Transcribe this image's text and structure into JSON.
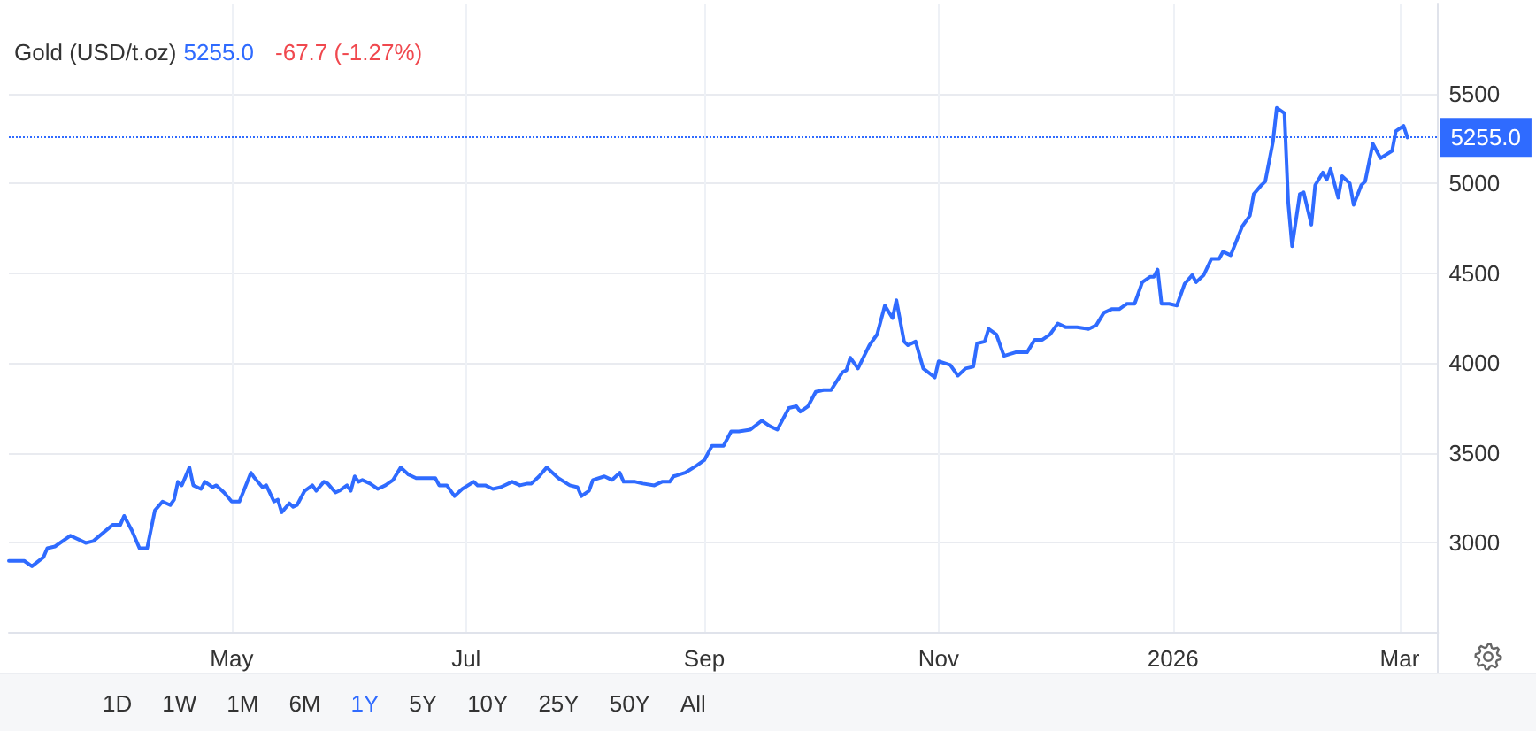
{
  "chart_data": {
    "type": "line",
    "title": "Gold (USD/t.oz)",
    "annotations": [
      "5255.0",
      "-67.7 (-1.27%)",
      "1D",
      "1W",
      "1M",
      "6M",
      "1Y",
      "5Y",
      "10Y",
      "25Y",
      "50Y",
      "All"
    ],
    "x": [
      "2025-03-04",
      "2025-03-08",
      "2025-03-10",
      "2025-03-13",
      "2025-03-14",
      "2025-03-16",
      "2025-03-20",
      "2025-03-24",
      "2025-03-26",
      "2025-03-31",
      "2025-04-02",
      "2025-04-03",
      "2025-04-05",
      "2025-04-07",
      "2025-04-09",
      "2025-04-11",
      "2025-04-13",
      "2025-04-15",
      "2025-04-16",
      "2025-04-17",
      "2025-04-18",
      "2025-04-20",
      "2025-04-21",
      "2025-04-23",
      "2025-04-24",
      "2025-04-26",
      "2025-04-27",
      "2025-04-29",
      "2025-05-01",
      "2025-05-03",
      "2025-05-06",
      "2025-05-07",
      "2025-05-09",
      "2025-05-10",
      "2025-05-12",
      "2025-05-13",
      "2025-05-14",
      "2025-05-16",
      "2025-05-17",
      "2025-05-18",
      "2025-05-20",
      "2025-05-22",
      "2025-05-23",
      "2025-05-25",
      "2025-05-26",
      "2025-05-28",
      "2025-05-29",
      "2025-05-31",
      "2025-06-01",
      "2025-06-02",
      "2025-06-03",
      "2025-06-04",
      "2025-06-06",
      "2025-06-08",
      "2025-06-10",
      "2025-06-12",
      "2025-06-14",
      "2025-06-16",
      "2025-06-18",
      "2025-06-23",
      "2025-06-24",
      "2025-06-26",
      "2025-06-28",
      "2025-06-30",
      "2025-07-03",
      "2025-07-04",
      "2025-07-06",
      "2025-07-08",
      "2025-07-10",
      "2025-07-13",
      "2025-07-15",
      "2025-07-17",
      "2025-07-18",
      "2025-07-20",
      "2025-07-22",
      "2025-07-25",
      "2025-07-28",
      "2025-07-30",
      "2025-07-31",
      "2025-08-02",
      "2025-08-03",
      "2025-08-06",
      "2025-08-08",
      "2025-08-10",
      "2025-08-11",
      "2025-08-14",
      "2025-08-16",
      "2025-08-19",
      "2025-08-21",
      "2025-08-23",
      "2025-08-24",
      "2025-08-27",
      "2025-08-30",
      "2025-09-01",
      "2025-09-03",
      "2025-09-06",
      "2025-09-08",
      "2025-09-10",
      "2025-09-13",
      "2025-09-16",
      "2025-09-18",
      "2025-09-20",
      "2025-09-23",
      "2025-09-25",
      "2025-09-26",
      "2025-09-28",
      "2025-09-30",
      "2025-10-02",
      "2025-10-04",
      "2025-10-07",
      "2025-10-08",
      "2025-10-09",
      "2025-10-11",
      "2025-10-14",
      "2025-10-16",
      "2025-10-18",
      "2025-10-20",
      "2025-10-21",
      "2025-10-23",
      "2025-10-24",
      "2025-10-26",
      "2025-10-28",
      "2025-10-31",
      "2025-11-01",
      "2025-11-04",
      "2025-11-06",
      "2025-11-08",
      "2025-11-10",
      "2025-11-11",
      "2025-11-13",
      "2025-11-14",
      "2025-11-16",
      "2025-11-18",
      "2025-11-21",
      "2025-11-24",
      "2025-11-26",
      "2025-11-28",
      "2025-11-30",
      "2025-12-02",
      "2025-12-04",
      "2025-12-07",
      "2025-12-10",
      "2025-12-12",
      "2025-12-14",
      "2025-12-16",
      "2025-12-18",
      "2025-12-20",
      "2025-12-22",
      "2025-12-24",
      "2025-12-26",
      "2025-12-27",
      "2025-12-28",
      "2025-12-29",
      "2025-12-31",
      "2026-01-02",
      "2026-01-04",
      "2026-01-06",
      "2026-01-07",
      "2026-01-09",
      "2026-01-11",
      "2026-01-13",
      "2026-01-14",
      "2026-01-16",
      "2026-01-19",
      "2026-01-21",
      "2026-01-22",
      "2026-01-24",
      "2026-01-25",
      "2026-01-27",
      "2026-01-28",
      "2026-01-30",
      "2026-01-31",
      "2026-02-01",
      "2026-02-03",
      "2026-02-04",
      "2026-02-06",
      "2026-02-07",
      "2026-02-09",
      "2026-02-10",
      "2026-02-11",
      "2026-02-13",
      "2026-02-14",
      "2026-02-16",
      "2026-02-17",
      "2026-02-19",
      "2026-02-20",
      "2026-02-22",
      "2026-02-24",
      "2026-02-27",
      "2026-02-28",
      "2026-03-02",
      "2026-03-03"
    ],
    "series": [
      {
        "color": "#2f6bff",
        "values": [
          2900,
          2900,
          2870,
          2920,
          2970,
          2980,
          3040,
          3000,
          3010,
          3100,
          3100,
          3150,
          3070,
          2970,
          2970,
          3180,
          3230,
          3210,
          3240,
          3340,
          3320,
          3420,
          3320,
          3300,
          3340,
          3310,
          3320,
          3280,
          3230,
          3230,
          3390,
          3360,
          3310,
          3320,
          3230,
          3240,
          3170,
          3220,
          3200,
          3210,
          3290,
          3320,
          3290,
          3340,
          3330,
          3280,
          3290,
          3320,
          3290,
          3370,
          3340,
          3350,
          3330,
          3300,
          3320,
          3350,
          3420,
          3380,
          3360,
          3360,
          3320,
          3320,
          3260,
          3300,
          3340,
          3320,
          3320,
          3300,
          3310,
          3340,
          3320,
          3330,
          3330,
          3370,
          3420,
          3360,
          3320,
          3310,
          3260,
          3290,
          3350,
          3370,
          3350,
          3390,
          3340,
          3340,
          3330,
          3320,
          3340,
          3340,
          3370,
          3390,
          3430,
          3460,
          3540,
          3540,
          3620,
          3620,
          3630,
          3680,
          3650,
          3630,
          3750,
          3760,
          3730,
          3760,
          3840,
          3850,
          3850,
          3950,
          3960,
          4030,
          3970,
          4100,
          4160,
          4320,
          4250,
          4350,
          4120,
          4100,
          4120,
          3970,
          3920,
          4010,
          3990,
          3930,
          3970,
          3980,
          4110,
          4120,
          4190,
          4160,
          4040,
          4060,
          4060,
          4130,
          4130,
          4160,
          4220,
          4200,
          4200,
          4190,
          4210,
          4280,
          4300,
          4300,
          4330,
          4330,
          4450,
          4480,
          4480,
          4520,
          4330,
          4330,
          4320,
          4440,
          4490,
          4450,
          4490,
          4580,
          4580,
          4620,
          4600,
          4760,
          4820,
          4940,
          4990,
          5010,
          5230,
          5420,
          5390,
          4890,
          4650,
          4940,
          4950,
          4770,
          4990,
          5060,
          5020,
          5080,
          4920,
          5040,
          5000,
          4880,
          4990,
          5010,
          5220,
          5140,
          5180,
          5290,
          5320,
          5255
        ]
      }
    ],
    "xlim": [
      "2025-03-04",
      "2026-03-11"
    ],
    "xticks": [
      {
        "value": "2025-05-01",
        "label": "May"
      },
      {
        "value": "2025-07-01",
        "label": "Jul"
      },
      {
        "value": "2025-09-01",
        "label": "Sep"
      },
      {
        "value": "2025-11-01",
        "label": "Nov"
      },
      {
        "value": "2026-01-01",
        "label": "2026"
      },
      {
        "value": "2026-03-01",
        "label": "Mar"
      }
    ],
    "ylim": [
      2500,
      6000
    ],
    "yticks": [
      3000,
      3500,
      4000,
      4500,
      5000,
      5500
    ],
    "ref_lines": [
      {
        "axis": "y",
        "value": 5255,
        "label": "5255.0",
        "color": "#2f6bff",
        "line_style": "dotted"
      }
    ],
    "grid": true,
    "marker": "none",
    "line_style": "solid"
  }
}
